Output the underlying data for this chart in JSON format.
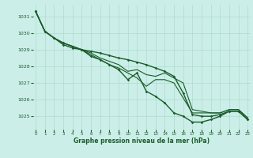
{
  "title": "Graphe pression niveau de la mer (hPa)",
  "bg_color": "#cceee8",
  "grid_color": "#aaddcc",
  "line_color": "#1a5c2a",
  "xlim": [
    -0.3,
    23.3
  ],
  "ylim": [
    1024.2,
    1031.7
  ],
  "yticks": [
    1025,
    1026,
    1027,
    1028,
    1029,
    1030,
    1031
  ],
  "xticks": [
    0,
    1,
    2,
    3,
    4,
    5,
    6,
    7,
    8,
    9,
    10,
    11,
    12,
    13,
    14,
    15,
    16,
    17,
    18,
    19,
    20,
    21,
    22,
    23
  ],
  "series": [
    {
      "values": [
        1031.3,
        1030.1,
        1029.7,
        1029.4,
        1029.2,
        1029.0,
        1028.8,
        1028.5,
        1028.3,
        1028.1,
        1027.7,
        1027.8,
        1027.5,
        1027.4,
        1027.6,
        1027.3,
        1027.0,
        1025.4,
        1025.3,
        1025.2,
        1025.2,
        1025.4,
        1025.4,
        1024.9
      ],
      "marker": false,
      "lw": 0.8
    },
    {
      "values": [
        1031.3,
        1030.1,
        1029.7,
        1029.4,
        1029.2,
        1029.0,
        1028.7,
        1028.4,
        1028.1,
        1027.9,
        1027.6,
        1027.3,
        1026.8,
        1027.2,
        1027.2,
        1027.0,
        1026.1,
        1025.2,
        1025.2,
        1025.2,
        1025.2,
        1025.4,
        1025.4,
        1024.9
      ],
      "marker": false,
      "lw": 0.8
    },
    {
      "values": [
        1031.3,
        1030.1,
        1029.7,
        1029.4,
        1029.2,
        1029.0,
        1028.6,
        1028.4,
        1028.1,
        1027.8,
        1027.2,
        1027.6,
        1026.5,
        1026.2,
        1025.8,
        1025.2,
        1025.0,
        1024.65,
        1024.65,
        1024.8,
        1025.0,
        1025.3,
        1025.3,
        1024.8
      ],
      "marker": true,
      "lw": 1.0
    },
    {
      "values": [
        1031.3,
        1030.1,
        1029.7,
        1029.3,
        1029.1,
        1029.0,
        1028.9,
        1028.8,
        1028.65,
        1028.5,
        1028.4,
        1028.25,
        1028.1,
        1027.9,
        1027.7,
        1027.4,
        1026.4,
        1025.1,
        1025.0,
        1025.0,
        1025.1,
        1025.3,
        1025.3,
        1024.8
      ],
      "marker": true,
      "lw": 1.0
    }
  ]
}
